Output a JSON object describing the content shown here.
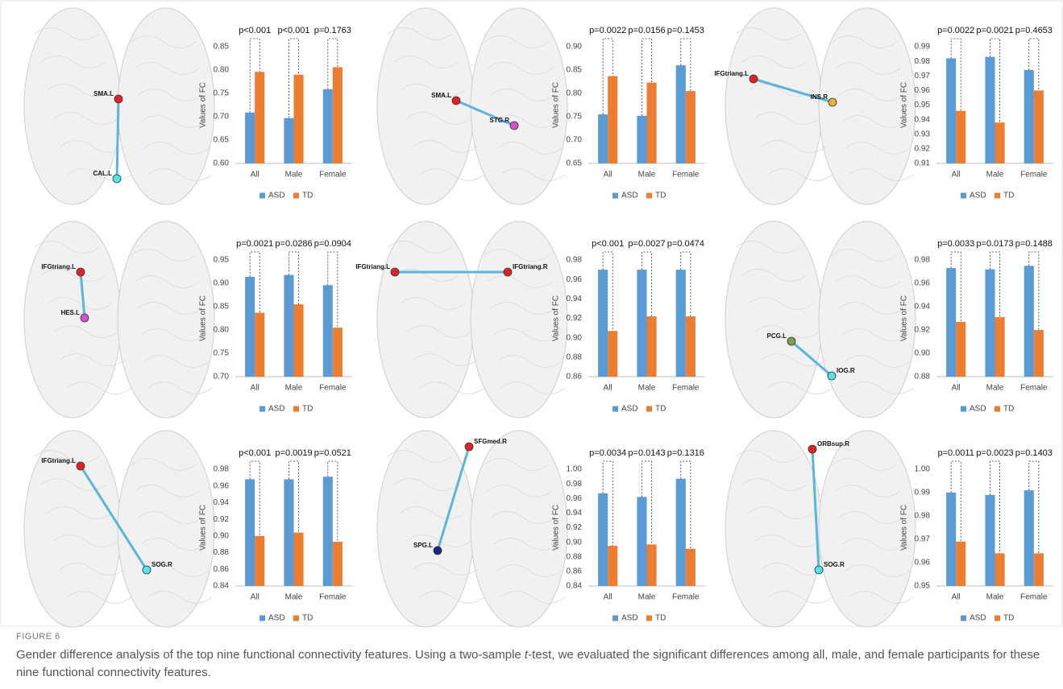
{
  "figure": {
    "label": "FIGURE 6",
    "caption": [
      "Gender difference analysis of the top nine functional connectivity features. Using a two-sample ",
      "t",
      "-test, we evaluated the significant differences among all, male, and female participants for these nine functional connectivity features."
    ]
  },
  "chart_data": [
    {
      "type": "bar",
      "ylabel": "Values of FC",
      "categories": [
        "All",
        "Male",
        "Female"
      ],
      "annotations": [
        "p<0.001",
        "p<0.001",
        "p=0.1763"
      ],
      "series": [
        {
          "name": "ASD",
          "color": "#5b9bd5",
          "values": [
            0.709,
            0.697,
            0.759
          ]
        },
        {
          "name": "TD",
          "color": "#ed7d31",
          "values": [
            0.796,
            0.79,
            0.806
          ]
        }
      ],
      "ylim": [
        0.6,
        0.85
      ],
      "yticks": [
        {
          "value": 0.6,
          "label": "0.60"
        },
        0.65,
        {
          "value": 0.7,
          "label": "0.70"
        },
        0.75,
        {
          "value": 0.8,
          "label": "0.80"
        },
        0.85
      ],
      "brain_nodes": [
        {
          "label": "SMA.L",
          "color": "#e32228"
        },
        {
          "label": "CAL.L",
          "color": "#4ee6e6"
        }
      ]
    },
    {
      "type": "bar",
      "ylabel": "Values of FC",
      "categories": [
        "All",
        "Male",
        "Female"
      ],
      "annotations": [
        "p=0.0022",
        "p=0.0156",
        "p=0.1453"
      ],
      "series": [
        {
          "name": "ASD",
          "color": "#5b9bd5",
          "values": [
            0.755,
            0.752,
            0.86
          ]
        },
        {
          "name": "TD",
          "color": "#ed7d31",
          "values": [
            0.837,
            0.823,
            0.805
          ]
        }
      ],
      "ylim": [
        0.65,
        0.9
      ],
      "yticks": [
        0.65,
        {
          "value": 0.7,
          "label": "0.70"
        },
        0.75,
        {
          "value": 0.8,
          "label": "0.80"
        },
        0.85,
        {
          "value": 0.9,
          "label": "0.90"
        }
      ],
      "brain_nodes": [
        {
          "label": "SMA.L",
          "color": "#e32228"
        },
        {
          "label": "STG.R",
          "color": "#d650cf"
        }
      ]
    },
    {
      "type": "bar",
      "ylabel": "Values of FC",
      "categories": [
        "All",
        "Male",
        "Female"
      ],
      "annotations": [
        "p=0.0022",
        "p=0.0021",
        "p=0.4653"
      ],
      "series": [
        {
          "name": "ASD",
          "color": "#5b9bd5",
          "values": [
            0.982,
            0.983,
            0.974
          ]
        },
        {
          "name": "TD",
          "color": "#ed7d31",
          "values": [
            0.946,
            0.938,
            0.96
          ]
        }
      ],
      "ylim": [
        0.91,
        0.99
      ],
      "yticks": [
        0.91,
        0.92,
        0.93,
        0.94,
        0.95,
        0.96,
        0.97,
        0.98,
        0.99
      ],
      "brain_nodes": [
        {
          "label": "IFGtriang.L",
          "color": "#e32228"
        },
        {
          "label": "INS.R",
          "color": "#e6b232"
        }
      ]
    },
    {
      "type": "bar",
      "ylabel": "Values of FC",
      "categories": [
        "All",
        "Male",
        "Female"
      ],
      "annotations": [
        "p=0.0021",
        "p=0.0286",
        "p=0.0904"
      ],
      "series": [
        {
          "name": "ASD",
          "color": "#5b9bd5",
          "values": [
            0.914,
            0.918,
            0.896
          ]
        },
        {
          "name": "TD",
          "color": "#ed7d31",
          "values": [
            0.837,
            0.855,
            0.805
          ]
        }
      ],
      "ylim": [
        0.7,
        0.95
      ],
      "yticks": [
        {
          "value": 0.7,
          "label": "0.70"
        },
        0.75,
        {
          "value": 0.8,
          "label": "0.80"
        },
        0.85,
        {
          "value": 0.9,
          "label": "0.90"
        },
        0.95
      ],
      "brain_nodes": [
        {
          "label": "IFGtriang.L",
          "color": "#e32228"
        },
        {
          "label": "HES.L",
          "color": "#d650cf"
        }
      ]
    },
    {
      "type": "bar",
      "ylabel": "Values of FC",
      "categories": [
        "All",
        "Male",
        "Female"
      ],
      "annotations": [
        "p<0.001",
        "p=0.0027",
        "p=0.0474"
      ],
      "series": [
        {
          "name": "ASD",
          "color": "#5b9bd5",
          "values": [
            0.97,
            0.97,
            0.97
          ]
        },
        {
          "name": "TD",
          "color": "#ed7d31",
          "values": [
            0.907,
            0.922,
            0.922
          ]
        }
      ],
      "ylim": [
        0.86,
        0.98
      ],
      "yticks": [
        0.86,
        0.88,
        {
          "value": 0.9,
          "label": "0.90"
        },
        0.92,
        0.94,
        0.96,
        0.98
      ],
      "brain_nodes": [
        {
          "label": "IFGtriang.L",
          "color": "#e32228"
        },
        {
          "label": "IFGtriang.R",
          "color": "#e32228"
        }
      ]
    },
    {
      "type": "bar",
      "ylabel": "Values of FC",
      "categories": [
        "All",
        "Male",
        "Female"
      ],
      "annotations": [
        "p=0.0033",
        "p=0.0173",
        "p=0.1488"
      ],
      "series": [
        {
          "name": "ASD",
          "color": "#5b9bd5",
          "values": [
            0.973,
            0.972,
            0.975
          ]
        },
        {
          "name": "TD",
          "color": "#ed7d31",
          "values": [
            0.927,
            0.931,
            0.92
          ]
        }
      ],
      "ylim": [
        0.88,
        0.98
      ],
      "yticks": [
        0.88,
        {
          "value": 0.9,
          "label": "0.90"
        },
        0.92,
        0.94,
        0.96,
        0.98
      ],
      "brain_nodes": [
        {
          "label": "PCG.L",
          "color": "#7ba052"
        },
        {
          "label": "IOG.R",
          "color": "#4ee6e6"
        }
      ]
    },
    {
      "type": "bar",
      "ylabel": "Values of FC",
      "categories": [
        "All",
        "Male",
        "Female"
      ],
      "annotations": [
        "p<0.001",
        "p=0.0019",
        "p=0.0521"
      ],
      "series": [
        {
          "name": "ASD",
          "color": "#5b9bd5",
          "values": [
            0.968,
            0.968,
            0.971
          ]
        },
        {
          "name": "TD",
          "color": "#ed7d31",
          "values": [
            0.9,
            0.904,
            0.893
          ]
        }
      ],
      "ylim": [
        0.84,
        0.98
      ],
      "yticks": [
        0.84,
        0.86,
        0.88,
        {
          "value": 0.9,
          "label": "0.90"
        },
        0.92,
        0.94,
        0.96,
        0.98
      ],
      "brain_nodes": [
        {
          "label": "IFGtriang.L",
          "color": "#e32228"
        },
        {
          "label": "SOG.R",
          "color": "#4ee6e6"
        }
      ]
    },
    {
      "type": "bar",
      "ylabel": "Values of FC",
      "categories": [
        "All",
        "Male",
        "Female"
      ],
      "annotations": [
        "p=0.0034",
        "p=0.0143",
        "p=0.1316"
      ],
      "series": [
        {
          "name": "ASD",
          "color": "#5b9bd5",
          "values": [
            0.967,
            0.962,
            0.987
          ]
        },
        {
          "name": "TD",
          "color": "#ed7d31",
          "values": [
            0.895,
            0.897,
            0.891
          ]
        }
      ],
      "ylim": [
        0.84,
        1.0
      ],
      "yticks": [
        0.84,
        0.86,
        0.88,
        {
          "value": 0.9,
          "label": "0.90"
        },
        0.92,
        0.94,
        0.96,
        0.98,
        {
          "value": 1,
          "label": "1.00"
        }
      ],
      "brain_nodes": [
        {
          "label": "SFGmed.R",
          "color": "#e32228"
        },
        {
          "label": "SPG.L",
          "color": "#1b2480"
        }
      ]
    },
    {
      "type": "bar",
      "ylabel": "Values of FC",
      "categories": [
        "All",
        "Male",
        "Female"
      ],
      "annotations": [
        "p=0.0011",
        "p=0.0023",
        "p=0.1403"
      ],
      "series": [
        {
          "name": "ASD",
          "color": "#5b9bd5",
          "values": [
            0.99,
            0.989,
            0.991
          ]
        },
        {
          "name": "TD",
          "color": "#ed7d31",
          "values": [
            0.969,
            0.964,
            0.964
          ]
        }
      ],
      "ylim": [
        0.95,
        1.0
      ],
      "yticks": [
        0.95,
        0.96,
        0.97,
        0.98,
        0.99,
        {
          "value": 1,
          "label": "1.00"
        }
      ],
      "brain_nodes": [
        {
          "label": "ORBsup.R",
          "color": "#e32228"
        },
        {
          "label": "SOG.R",
          "color": "#4ee6e6"
        }
      ]
    }
  ]
}
